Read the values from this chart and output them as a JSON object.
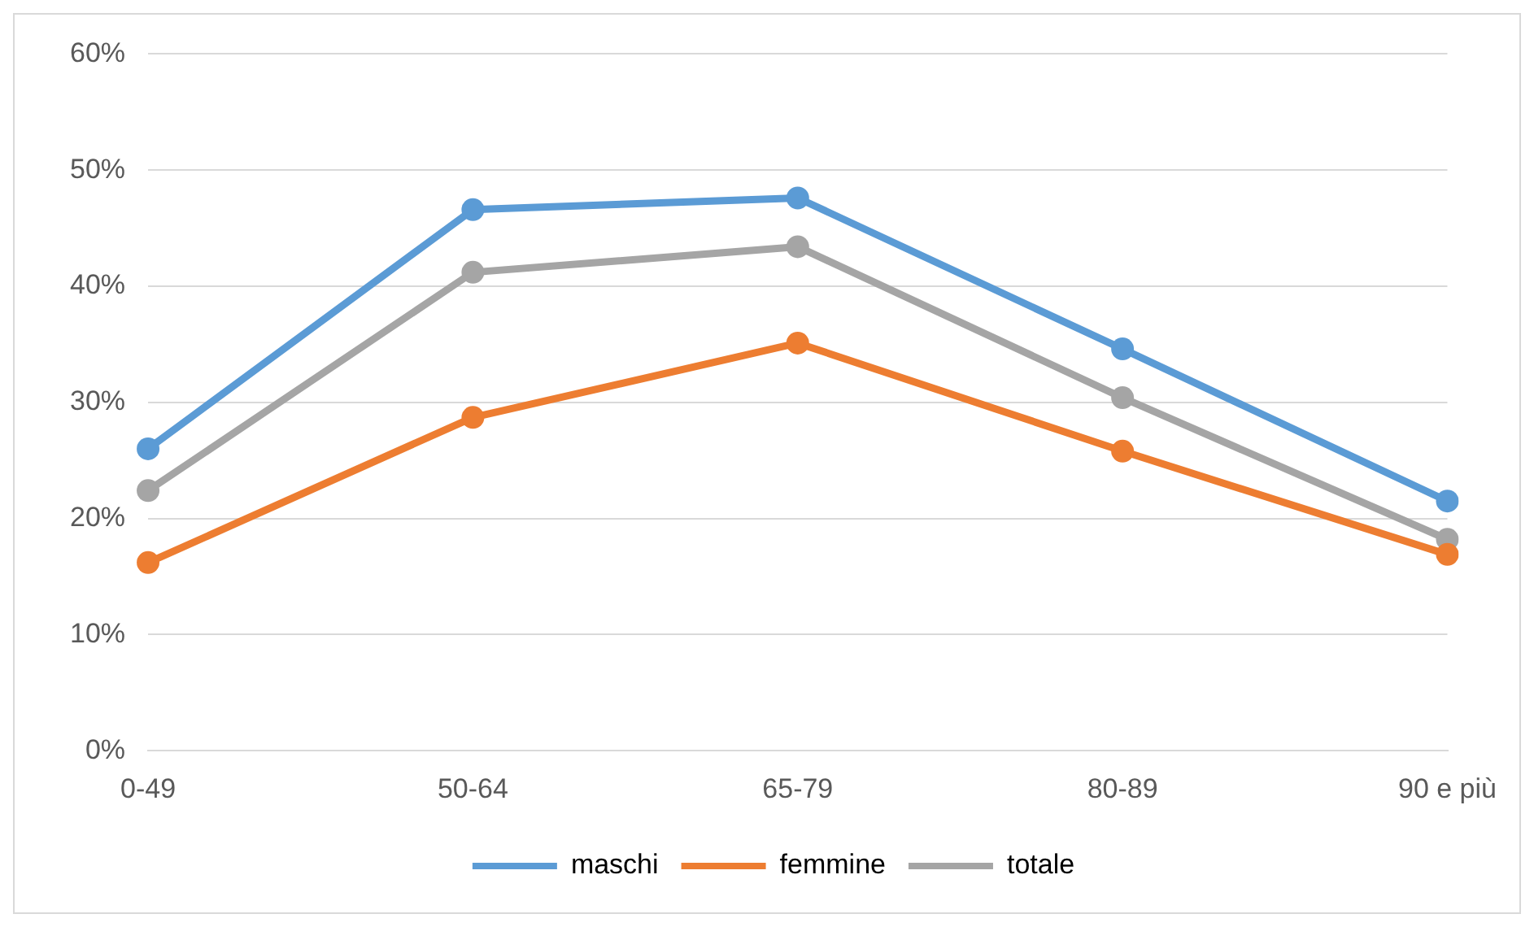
{
  "chart_data": {
    "type": "line",
    "categories": [
      "0-49",
      "50-64",
      "65-79",
      "80-89",
      "90 e più"
    ],
    "series": [
      {
        "name": "maschi",
        "color": "#5b9bd5",
        "values": [
          26.0,
          46.6,
          47.6,
          34.6,
          21.5
        ]
      },
      {
        "name": "femmine",
        "color": "#ed7d31",
        "values": [
          16.2,
          28.7,
          35.1,
          25.8,
          16.9
        ]
      },
      {
        "name": "totale",
        "color": "#a5a5a5",
        "values": [
          22.4,
          41.2,
          43.4,
          30.4,
          18.2
        ]
      }
    ],
    "ylim": [
      0,
      60
    ],
    "yticks": [
      {
        "value": 0,
        "label": "0%"
      },
      {
        "value": 10,
        "label": "10%"
      },
      {
        "value": 20,
        "label": "20%"
      },
      {
        "value": 30,
        "label": "30%"
      },
      {
        "value": 40,
        "label": "40%"
      },
      {
        "value": 50,
        "label": "50%"
      },
      {
        "value": 60,
        "label": "60%"
      }
    ],
    "grid": "y",
    "legend": "bottom",
    "marker": "circle",
    "line_style": "solid"
  }
}
